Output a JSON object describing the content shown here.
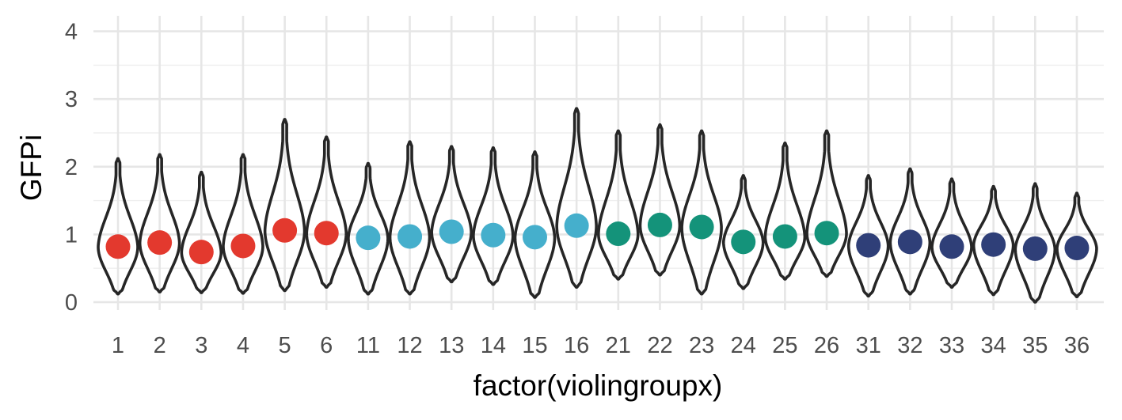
{
  "chart_data": {
    "type": "violin",
    "xlabel": "factor(violingroupx)",
    "ylabel": "GFPi",
    "ylim": [
      0,
      4.2
    ],
    "yticks": [
      0,
      1,
      2,
      3,
      4
    ],
    "grid": true,
    "categories": [
      "1",
      "2",
      "3",
      "4",
      "5",
      "6",
      "11",
      "12",
      "13",
      "14",
      "15",
      "16",
      "21",
      "22",
      "23",
      "24",
      "25",
      "26",
      "31",
      "32",
      "33",
      "34",
      "35",
      "36"
    ],
    "points": [
      0.82,
      0.88,
      0.74,
      0.83,
      1.06,
      1.02,
      0.95,
      0.97,
      1.04,
      0.99,
      0.96,
      1.13,
      1.01,
      1.14,
      1.11,
      0.89,
      0.97,
      1.02,
      0.84,
      0.89,
      0.82,
      0.85,
      0.79,
      0.8
    ],
    "violin_min": [
      0.12,
      0.15,
      0.14,
      0.13,
      0.17,
      0.22,
      0.12,
      0.12,
      0.3,
      0.26,
      0.07,
      0.22,
      0.34,
      0.4,
      0.12,
      0.2,
      0.34,
      0.38,
      0.09,
      0.12,
      0.22,
      0.11,
      0.0,
      0.08
    ],
    "violin_max": [
      2.12,
      2.18,
      1.92,
      2.18,
      2.7,
      2.44,
      2.05,
      2.37,
      2.3,
      2.28,
      2.22,
      2.86,
      2.53,
      2.62,
      2.53,
      1.87,
      2.35,
      2.53,
      1.87,
      1.97,
      1.82,
      1.71,
      1.75,
      1.61
    ],
    "colors": [
      "#E3392E",
      "#E3392E",
      "#E3392E",
      "#E3392E",
      "#E3392E",
      "#E3392E",
      "#45AFCC",
      "#45AFCC",
      "#45AFCC",
      "#45AFCC",
      "#45AFCC",
      "#45AFCC",
      "#14937A",
      "#14937A",
      "#14937A",
      "#14937A",
      "#14937A",
      "#14937A",
      "#2F3F78",
      "#2F3F78",
      "#2F3F78",
      "#2F3F78",
      "#2F3F78",
      "#2F3F78"
    ]
  }
}
